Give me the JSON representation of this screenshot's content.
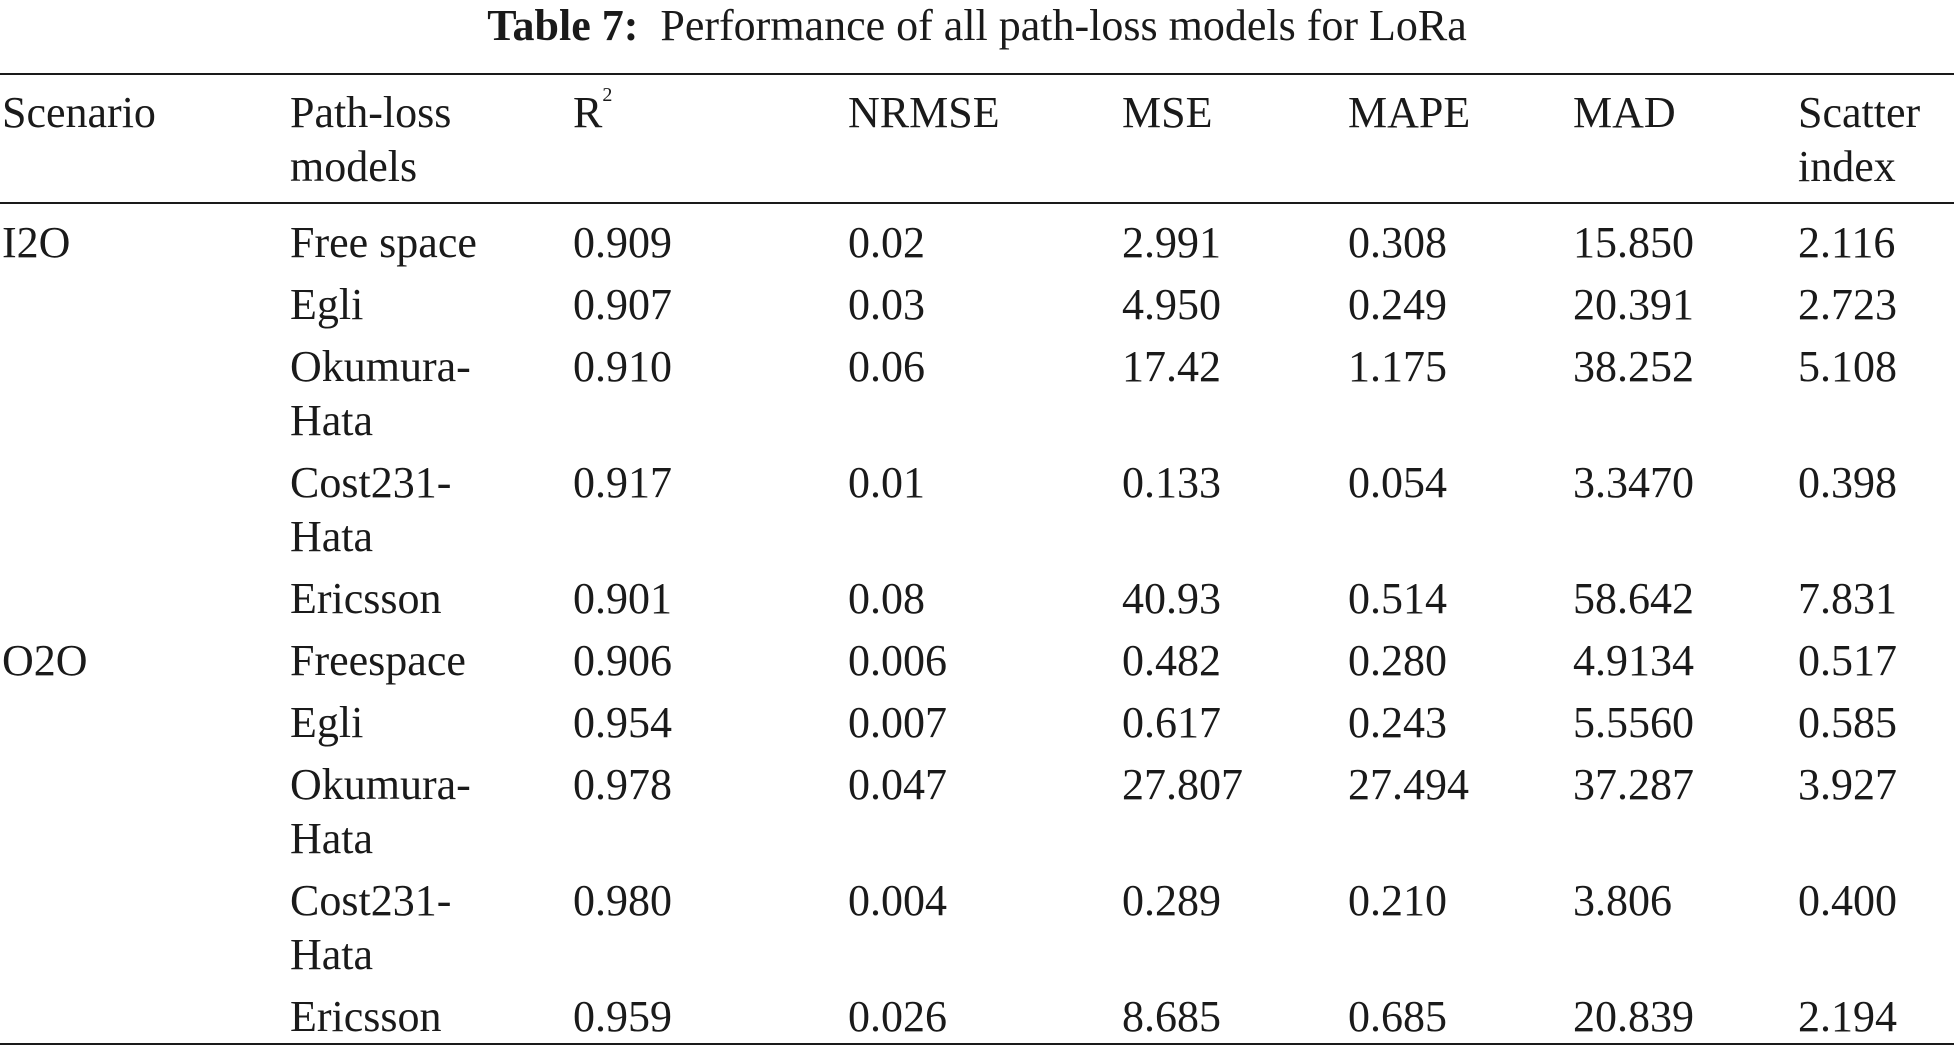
{
  "caption": {
    "label": "Table 7:",
    "text": "Performance of all path-loss models for LoRa"
  },
  "columns": {
    "scenario": "Scenario",
    "model_line1": "Path-loss",
    "model_line2": "models",
    "r2_base": "R",
    "r2_sup": "2",
    "nrmse": "NRMSE",
    "mse": "MSE",
    "mape": "MAPE",
    "mad": "MAD",
    "scatter_line1": "Scatter",
    "scatter_line2": "index"
  },
  "rows": [
    {
      "scenario": "I2O",
      "model": [
        "Free space"
      ],
      "r2": "0.909",
      "nrmse": "0.02",
      "mse": "2.991",
      "mape": "0.308",
      "mad": "15.850",
      "scatter": "2.116"
    },
    {
      "scenario": "",
      "model": [
        "Egli"
      ],
      "r2": "0.907",
      "nrmse": "0.03",
      "mse": "4.950",
      "mape": "0.249",
      "mad": "20.391",
      "scatter": "2.723"
    },
    {
      "scenario": "",
      "model": [
        "Okumura-",
        "Hata"
      ],
      "r2": "0.910",
      "nrmse": "0.06",
      "mse": "17.42",
      "mape": "1.175",
      "mad": "38.252",
      "scatter": "5.108"
    },
    {
      "scenario": "",
      "model": [
        "Cost231-",
        "Hata"
      ],
      "r2": "0.917",
      "nrmse": "0.01",
      "mse": "0.133",
      "mape": "0.054",
      "mad": "3.3470",
      "scatter": "0.398"
    },
    {
      "scenario": "",
      "model": [
        "Ericsson"
      ],
      "r2": "0.901",
      "nrmse": "0.08",
      "mse": "40.93",
      "mape": "0.514",
      "mad": "58.642",
      "scatter": "7.831"
    },
    {
      "scenario": "O2O",
      "model": [
        "Freespace"
      ],
      "r2": "0.906",
      "nrmse": "0.006",
      "mse": "0.482",
      "mape": "0.280",
      "mad": "4.9134",
      "scatter": "0.517"
    },
    {
      "scenario": "",
      "model": [
        "Egli"
      ],
      "r2": "0.954",
      "nrmse": "0.007",
      "mse": "0.617",
      "mape": "0.243",
      "mad": "5.5560",
      "scatter": "0.585"
    },
    {
      "scenario": "",
      "model": [
        "Okumura-",
        "Hata"
      ],
      "r2": "0.978",
      "nrmse": "0.047",
      "mse": "27.807",
      "mape": "27.494",
      "mad": "37.287",
      "scatter": "3.927"
    },
    {
      "scenario": "",
      "model": [
        "Cost231-",
        "Hata"
      ],
      "r2": "0.980",
      "nrmse": "0.004",
      "mse": "0.289",
      "mape": "0.210",
      "mad": "3.806",
      "scatter": "0.400"
    },
    {
      "scenario": "",
      "model": [
        "Ericsson"
      ],
      "r2": "0.959",
      "nrmse": "0.026",
      "mse": "8.685",
      "mape": "0.685",
      "mad": "20.839",
      "scatter": "2.194"
    }
  ]
}
